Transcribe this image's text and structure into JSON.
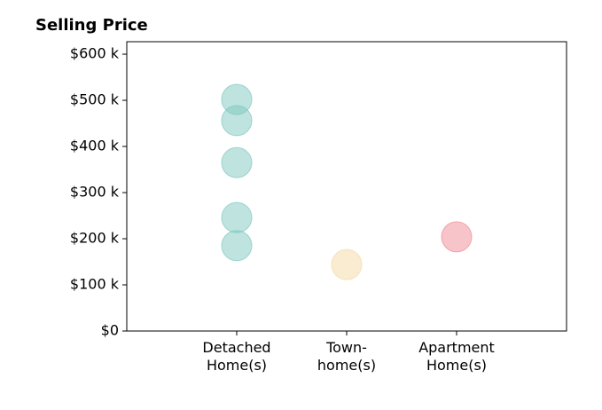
{
  "chart_data": {
    "type": "strip",
    "title": "Selling Price",
    "categories": [
      "Detached\nHome(s)",
      "Town-\nhome(s)",
      "Apartment\nHome(s)"
    ],
    "values": [
      [
        502,
        456,
        365,
        246,
        185
      ],
      [
        144
      ],
      [
        204
      ]
    ],
    "colors": [
      "#7fc8c0",
      "#f3d9a4",
      "#ef8a93"
    ],
    "xlim": [
      0,
      4
    ],
    "ylim": [
      0,
      627
    ],
    "yticks": [
      {
        "value": 0,
        "label": "$0"
      },
      {
        "value": 100,
        "label": "$100 k"
      },
      {
        "value": 200,
        "label": "$200 k"
      },
      {
        "value": 300,
        "label": "$300 k"
      },
      {
        "value": 400,
        "label": "$400 k"
      },
      {
        "value": 500,
        "label": "$500 k"
      },
      {
        "value": 600,
        "label": "$600 k"
      }
    ],
    "grid": false
  }
}
